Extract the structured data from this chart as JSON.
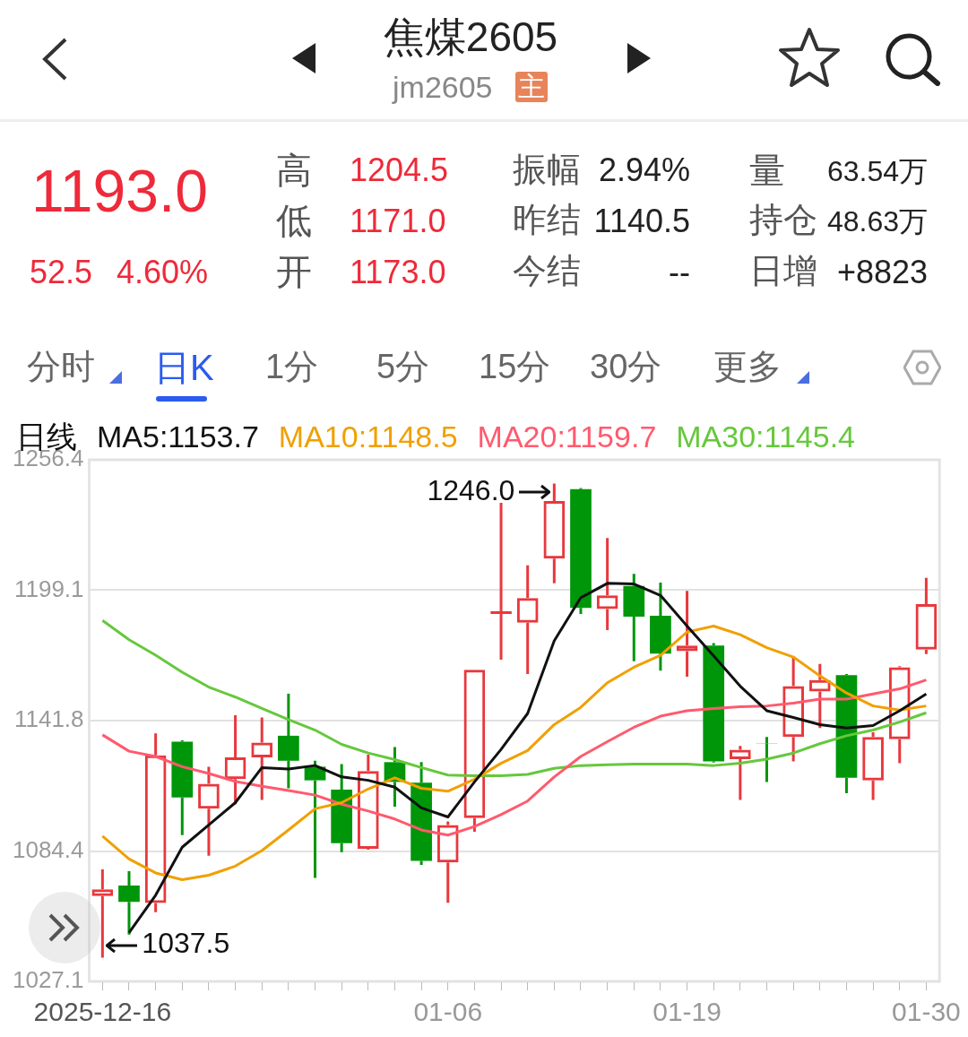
{
  "chart_data": {
    "type": "candlestick",
    "title": "焦煤2605",
    "subtitle": "jm2605",
    "legend_title": "日线",
    "legend": "top left",
    "grid": "y",
    "categories": [
      "2025-12-16",
      null,
      null,
      null,
      null,
      null,
      null,
      null,
      null,
      null,
      null,
      null,
      null,
      "01-06",
      null,
      null,
      null,
      null,
      null,
      null,
      null,
      null,
      "01-19",
      null,
      null,
      null,
      null,
      null,
      null,
      null,
      null,
      "01-30"
    ],
    "ylim": [
      1027.1,
      1256.4
    ],
    "yticks": [
      1027.1,
      1084.4,
      1141.8,
      1199.1,
      1256.4
    ],
    "series": [
      {
        "type": "candlestick",
        "ohlc": [
          [
            1064.6,
            1076.3,
            1037.5,
            1067.6
          ],
          [
            1069.3,
            1075.6,
            1047.7,
            1062.1
          ],
          [
            1061.6,
            1136.1,
            1057.5,
            1126.5
          ],
          [
            1132.5,
            1133.1,
            1091.4,
            1108.0
          ],
          [
            1103.0,
            1121.5,
            1082.4,
            1114.0
          ],
          [
            1116.0,
            1144.1,
            1105.0,
            1125.6
          ],
          [
            1125.6,
            1143.1,
            1106.9,
            1132.1
          ],
          [
            1135.1,
            1153.6,
            1112.0,
            1124.1
          ],
          [
            1121.5,
            1124.1,
            1072.6,
            1115.5
          ],
          [
            1111.4,
            1122.6,
            1083.9,
            1087.9
          ],
          [
            1085.4,
            1126.8,
            1085.0,
            1119.6
          ],
          [
            1123.5,
            1130.1,
            1103.9,
            1114.8
          ],
          [
            1114.5,
            1123.5,
            1078.3,
            1080.1
          ],
          [
            1079.4,
            1097.4,
            1061.7,
            1095.9
          ],
          [
            1098.9,
            1164.1,
            1092.9,
            1164.1
          ],
          [
            1188.6,
            1237.5,
            1168.5,
            1189.8
          ],
          [
            1184.8,
            1210.0,
            1162.2,
            1195.6
          ],
          [
            1213.0,
            1246.0,
            1202.1,
            1238.3
          ],
          [
            1243.5,
            1244.0,
            1188.6,
            1191.3
          ],
          [
            1190.8,
            1222.0,
            1181.5,
            1196.8
          ],
          [
            1200.9,
            1206.3,
            1167.9,
            1187.5
          ],
          [
            1187.8,
            1202.4,
            1163.7,
            1171.2
          ],
          [
            1172.3,
            1198.8,
            1161.1,
            1174.7
          ],
          [
            1174.7,
            1175.8,
            1123.3,
            1123.8
          ],
          [
            1124.8,
            1130.6,
            1106.9,
            1128.9
          ],
          [
            1131.6,
            1134.6,
            1114.8,
            1131.5
          ],
          [
            1134.6,
            1169.7,
            1123.8,
            1156.9
          ],
          [
            1154.6,
            1166.7,
            1138.5,
            1159.6
          ],
          [
            1161.7,
            1162.2,
            1109.8,
            1116.6
          ],
          [
            1115.5,
            1136.6,
            1106.9,
            1134.6
          ],
          [
            1133.6,
            1165.7,
            1123.0,
            1165.2
          ],
          [
            1173.0,
            1204.5,
            1171.0,
            1193.0
          ]
        ],
        "colors": [
          "#e8383d",
          "#00960a",
          "#e8383d",
          "#00960a",
          "#e8383d",
          "#e8383d",
          "#e8383d",
          "#00960a",
          "#00960a",
          "#00960a",
          "#e8383d",
          "#00960a",
          "#00960a",
          "#e8383d",
          "#e8383d",
          "#e8383d",
          "#e8383d",
          "#e8383d",
          "#00960a",
          "#e8383d",
          "#00960a",
          "#00960a",
          "#e8383d",
          "#00960a",
          "#e8383d",
          "#00960a",
          "#e8383d",
          "#e8383d",
          "#00960a",
          "#e8383d",
          "#e8383d",
          "#e8383d"
        ]
      },
      {
        "type": "line",
        "name": "MA5:1153.7",
        "color": "#111111",
        "values": [
          null,
          1048.5,
          1065.0,
          1086.1,
          1095.9,
          1105.7,
          1121.1,
          1120.5,
          1122.0,
          1117.0,
          1115.5,
          1112.5,
          1103.4,
          1099.4,
          1114.8,
          1129.1,
          1144.9,
          1176.8,
          1195.8,
          1202.1,
          1201.8,
          1196.8,
          1183.3,
          1170.2,
          1156.9,
          1146.1,
          1143.1,
          1140.0,
          1138.5,
          1139.6,
          1146.1,
          1153.5
        ]
      },
      {
        "type": "line",
        "name": "MA10:1148.5",
        "color": "#f0a000",
        "values": [
          1091.0,
          1080.9,
          1074.8,
          1071.8,
          1073.8,
          1077.8,
          1084.6,
          1093.7,
          1103.0,
          1105.7,
          1111.7,
          1116.6,
          1112.0,
          1110.7,
          1116.0,
          1123.0,
          1128.6,
          1140.0,
          1147.6,
          1158.4,
          1165.2,
          1170.5,
          1180.7,
          1183.3,
          1179.5,
          1173.8,
          1169.7,
          1161.4,
          1153.9,
          1148.2,
          1146.4,
          1148.2
        ]
      },
      {
        "type": "line",
        "name": "MA20:1159.7",
        "color": "#ff5a6e",
        "values": [
          1135.5,
          1128.3,
          1126.0,
          1121.5,
          1118.5,
          1115.0,
          1112.9,
          1111.0,
          1109.0,
          1105.0,
          1102.0,
          1098.5,
          1093.7,
          1091.4,
          1095.2,
          1100.4,
          1106.4,
          1117.0,
          1126.0,
          1132.5,
          1138.8,
          1143.7,
          1146.1,
          1147.1,
          1147.9,
          1148.2,
          1149.4,
          1151.2,
          1151.2,
          1153.5,
          1155.7,
          1159.6
        ]
      },
      {
        "type": "line",
        "name": "MA30:1145.4",
        "color": "#66c83c",
        "values": [
          1185.8,
          1177.3,
          1170.5,
          1163.0,
          1156.5,
          1152.1,
          1147.1,
          1142.2,
          1137.6,
          1131.3,
          1127.5,
          1124.6,
          1121.1,
          1117.8,
          1117.5,
          1117.5,
          1118.1,
          1120.8,
          1122.0,
          1122.3,
          1122.6,
          1122.6,
          1122.6,
          1122.0,
          1123.0,
          1124.8,
          1127.5,
          1131.6,
          1135.1,
          1137.6,
          1141.1,
          1145.2
        ]
      }
    ],
    "annotations": [
      "主",
      "1193.0",
      "52.5",
      "4.60%",
      "高",
      "1204.5",
      "低",
      "1171.0",
      "开",
      "1173.0",
      "振幅",
      "2.94%",
      "昨结",
      "1140.5",
      "今结",
      "--",
      "量",
      "63.54万",
      "持仓",
      "48.63万",
      "日增",
      "+8823",
      "分时",
      "日K",
      "1分",
      "5分",
      "15分",
      "30分",
      "更多",
      "1246.0",
      "1037.5"
    ]
  }
}
